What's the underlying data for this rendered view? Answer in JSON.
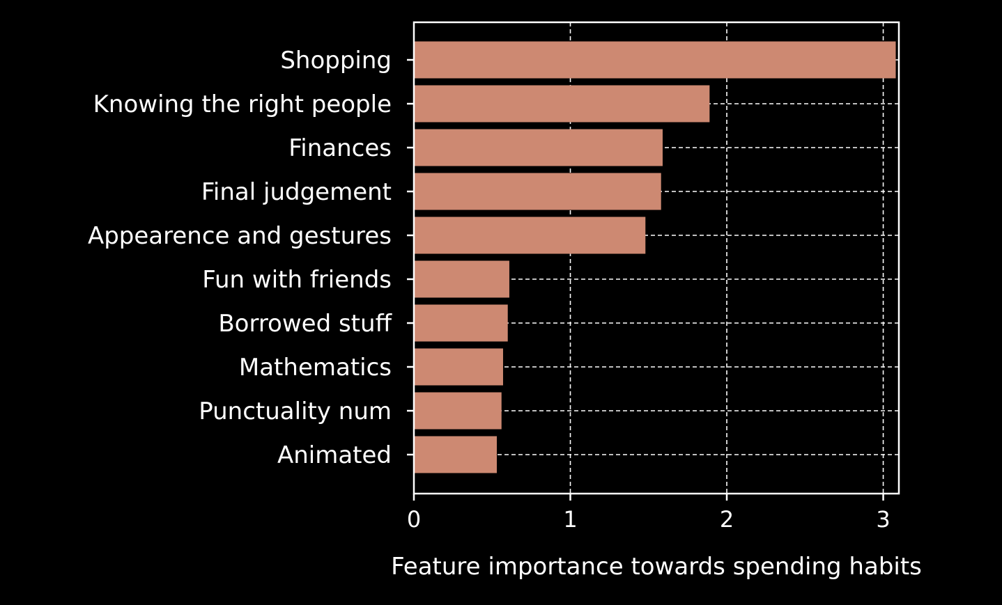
{
  "chart_data": {
    "type": "bar",
    "orientation": "horizontal",
    "categories": [
      "Shopping",
      "Knowing the right people",
      "Finances",
      "Final judgement",
      "Appearence and gestures",
      "Fun with friends",
      "Borrowed stuff",
      "Mathematics",
      "Punctuality num",
      "Animated"
    ],
    "values": [
      3.08,
      1.89,
      1.59,
      1.58,
      1.48,
      0.61,
      0.6,
      0.57,
      0.56,
      0.53
    ],
    "title": "",
    "xlabel": "Feature importance towards spending habits",
    "ylabel": "",
    "xlim": [
      0,
      3.1
    ],
    "xticks": [
      0,
      1,
      2,
      3
    ],
    "xtick_labels": [
      "0",
      "1",
      "2",
      "3"
    ],
    "grid": "dashed, both axes",
    "colors": {
      "background": "#000000",
      "bar": "#cd8972",
      "text": "#ffffff",
      "axis": "#ffffff",
      "grid": "#ffffff"
    }
  }
}
